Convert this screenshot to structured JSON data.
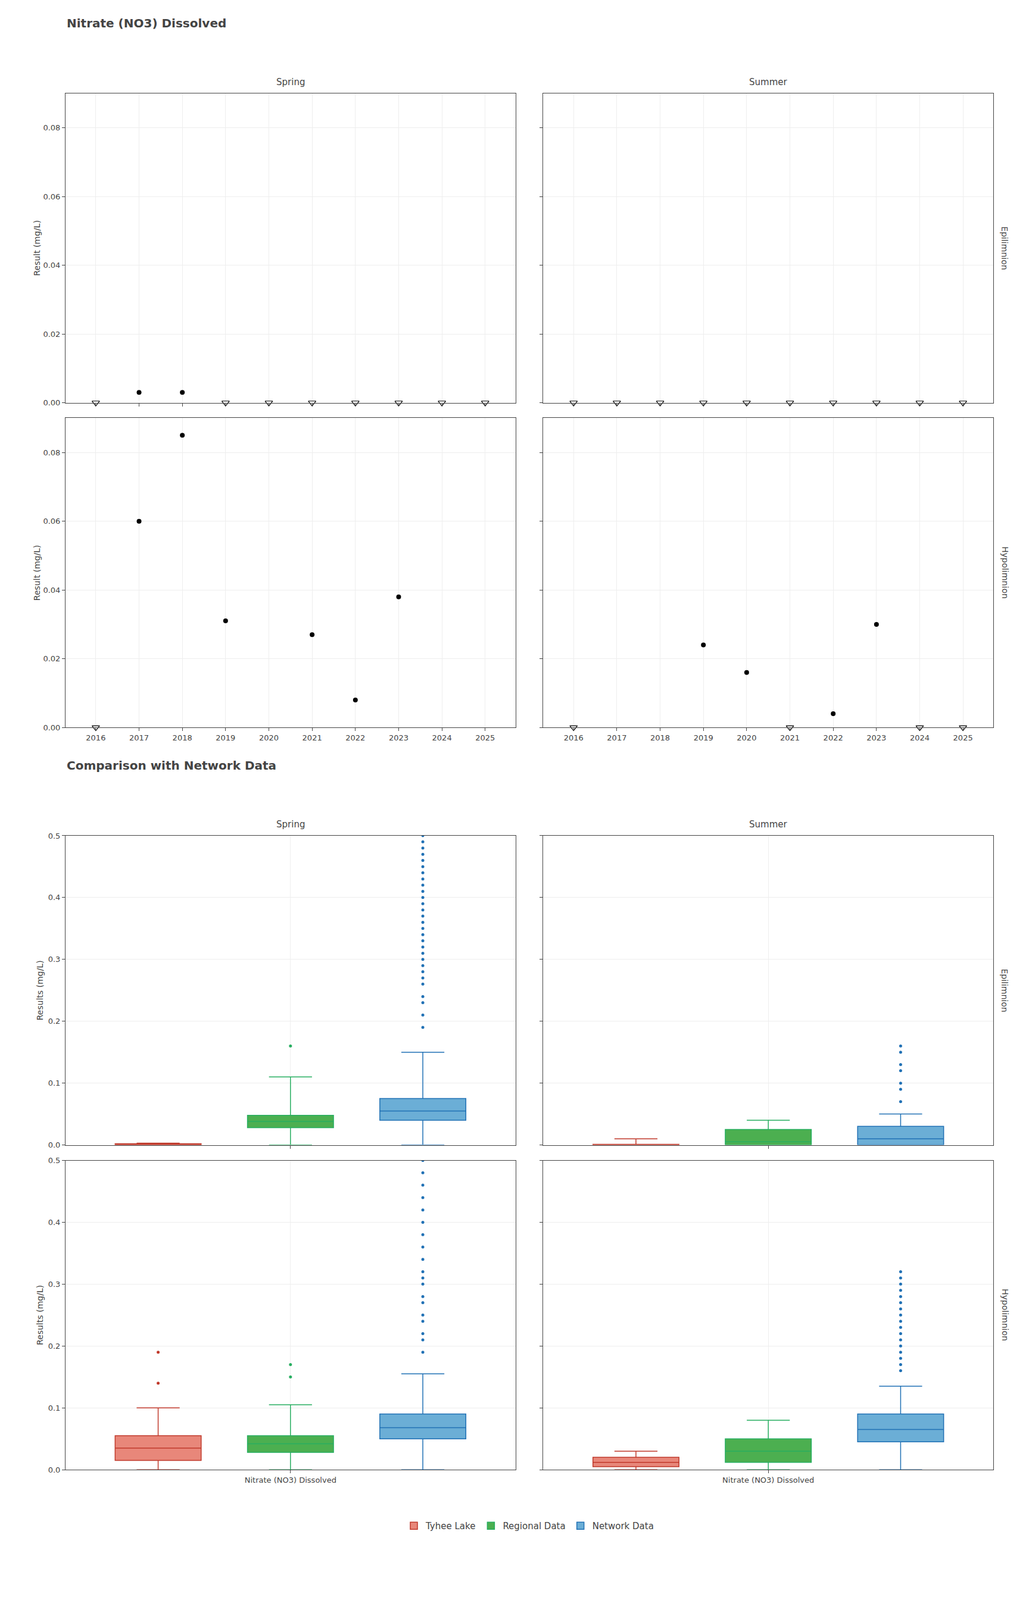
{
  "chart_data": [
    {
      "type": "scatter",
      "title": "Nitrate (NO3) Dissolved",
      "y_label": "Result (mg/L)",
      "columns": [
        "Spring",
        "Summer"
      ],
      "rows": [
        "Epilimnion",
        "Hypolimnion"
      ],
      "xlim": [
        2015.3,
        2025.7
      ],
      "xticks": [
        2016,
        2017,
        2018,
        2019,
        2020,
        2021,
        2022,
        2023,
        2024,
        2025
      ],
      "ylim": [
        0.0,
        0.09
      ],
      "yticks": [
        {
          "value": 0.0,
          "label": "0.00"
        },
        {
          "value": 0.02,
          "label": "0.02"
        },
        {
          "value": 0.04,
          "label": "0.04"
        },
        {
          "value": 0.06,
          "label": "0.06"
        },
        {
          "value": 0.08,
          "label": "0.08"
        }
      ],
      "grid": true,
      "panels": [
        {
          "column": "Spring",
          "row": "Epilimnion",
          "series": [
            {
              "marker": "circle",
              "color": "#000000",
              "x": [
                2017,
                2018
              ],
              "values": [
                0.003,
                0.003
              ]
            },
            {
              "marker": "triangle-down-open",
              "color": "#000000",
              "x": [
                2016,
                2019,
                2020,
                2021,
                2022,
                2023,
                2024,
                2025
              ],
              "values": [
                0,
                0,
                0,
                0,
                0,
                0,
                0,
                0
              ]
            }
          ]
        },
        {
          "column": "Summer",
          "row": "Epilimnion",
          "series": [
            {
              "marker": "circle",
              "color": "#000000",
              "x": [],
              "values": []
            },
            {
              "marker": "triangle-down-open",
              "color": "#000000",
              "x": [
                2016,
                2017,
                2018,
                2019,
                2020,
                2021,
                2022,
                2023,
                2024,
                2025
              ],
              "values": [
                0,
                0,
                0,
                0,
                0,
                0,
                0,
                0,
                0,
                0
              ]
            }
          ]
        },
        {
          "column": "Spring",
          "row": "Hypolimnion",
          "series": [
            {
              "marker": "circle",
              "color": "#000000",
              "x": [
                2017,
                2018,
                2019,
                2021,
                2022,
                2023
              ],
              "values": [
                0.06,
                0.085,
                0.031,
                0.027,
                0.008,
                0.038
              ]
            },
            {
              "marker": "triangle-down-open",
              "color": "#000000",
              "x": [
                2016
              ],
              "values": [
                0
              ]
            }
          ]
        },
        {
          "column": "Summer",
          "row": "Hypolimnion",
          "series": [
            {
              "marker": "circle",
              "color": "#000000",
              "x": [
                2019,
                2020,
                2022,
                2023
              ],
              "values": [
                0.024,
                0.016,
                0.004,
                0.03
              ]
            },
            {
              "marker": "triangle-down-open",
              "color": "#000000",
              "x": [
                2016,
                2021,
                2024,
                2025
              ],
              "values": [
                0,
                0,
                0,
                0
              ]
            }
          ]
        }
      ]
    },
    {
      "type": "box",
      "title": "Comparison with Network Data",
      "y_label": "Results (mg/L)",
      "x_label": "Nitrate (NO3) Dissolved",
      "columns": [
        "Spring",
        "Summer"
      ],
      "rows": [
        "Epilimnion",
        "Hypolimnion"
      ],
      "ylim": [
        0.0,
        0.5
      ],
      "yticks": [
        {
          "value": 0.0,
          "label": "0.0"
        },
        0.1,
        0.2,
        0.3,
        0.4,
        0.5
      ],
      "grid": true,
      "legend": "bottom",
      "series": [
        {
          "name": "Tyhee Lake",
          "color": "#e8877a",
          "edge_color": "#c0392b"
        },
        {
          "name": "Regional Data",
          "color": "#4caf50",
          "edge_color": "#27ae60"
        },
        {
          "name": "Network Data",
          "color": "#6baed6",
          "edge_color": "#2171b5"
        }
      ],
      "panels": [
        {
          "column": "Spring",
          "row": "Epilimnion",
          "boxes": [
            {
              "name": "Tyhee Lake",
              "q1": 0.0,
              "median": 0.0,
              "q3": 0.002,
              "whislo": 0.0,
              "whishi": 0.003,
              "fliers": []
            },
            {
              "name": "Regional Data",
              "q1": 0.028,
              "median": 0.038,
              "q3": 0.048,
              "whislo": 0.0,
              "whishi": 0.11,
              "fliers": [
                0.16
              ]
            },
            {
              "name": "Network Data",
              "q1": 0.04,
              "median": 0.055,
              "q3": 0.075,
              "whislo": 0.0,
              "whishi": 0.15,
              "fliers": [
                0.19,
                0.21,
                0.23,
                0.24,
                0.26,
                0.27,
                0.28,
                0.29,
                0.3,
                0.31,
                0.32,
                0.33,
                0.34,
                0.35,
                0.36,
                0.37,
                0.38,
                0.39,
                0.4,
                0.41,
                0.42,
                0.43,
                0.44,
                0.45,
                0.46,
                0.47,
                0.48,
                0.49,
                0.5
              ]
            }
          ]
        },
        {
          "column": "Summer",
          "row": "Epilimnion",
          "boxes": [
            {
              "name": "Tyhee Lake",
              "q1": 0.0,
              "median": 0.0,
              "q3": 0.001,
              "whislo": 0.0,
              "whishi": 0.01,
              "fliers": []
            },
            {
              "name": "Regional Data",
              "q1": 0.0,
              "median": 0.005,
              "q3": 0.025,
              "whislo": 0.0,
              "whishi": 0.04,
              "fliers": []
            },
            {
              "name": "Network Data",
              "q1": 0.0,
              "median": 0.01,
              "q3": 0.03,
              "whislo": 0.0,
              "whishi": 0.05,
              "fliers": [
                0.07,
                0.09,
                0.1,
                0.12,
                0.13,
                0.15,
                0.16
              ]
            }
          ]
        },
        {
          "column": "Spring",
          "row": "Hypolimnion",
          "boxes": [
            {
              "name": "Tyhee Lake",
              "q1": 0.015,
              "median": 0.035,
              "q3": 0.055,
              "whislo": 0.0,
              "whishi": 0.1,
              "fliers": [
                0.14,
                0.19
              ]
            },
            {
              "name": "Regional Data",
              "q1": 0.028,
              "median": 0.042,
              "q3": 0.055,
              "whislo": 0.0,
              "whishi": 0.105,
              "fliers": [
                0.15,
                0.17
              ]
            },
            {
              "name": "Network Data",
              "q1": 0.05,
              "median": 0.068,
              "q3": 0.09,
              "whislo": 0.0,
              "whishi": 0.155,
              "fliers": [
                0.19,
                0.21,
                0.22,
                0.24,
                0.25,
                0.27,
                0.28,
                0.3,
                0.31,
                0.32,
                0.34,
                0.36,
                0.38,
                0.4,
                0.42,
                0.44,
                0.46,
                0.48,
                0.5
              ]
            }
          ]
        },
        {
          "column": "Summer",
          "row": "Hypolimnion",
          "boxes": [
            {
              "name": "Tyhee Lake",
              "q1": 0.005,
              "median": 0.012,
              "q3": 0.02,
              "whislo": 0.0,
              "whishi": 0.03,
              "fliers": []
            },
            {
              "name": "Regional Data",
              "q1": 0.012,
              "median": 0.03,
              "q3": 0.05,
              "whislo": 0.0,
              "whishi": 0.08,
              "fliers": []
            },
            {
              "name": "Network Data",
              "q1": 0.045,
              "median": 0.065,
              "q3": 0.09,
              "whislo": 0.0,
              "whishi": 0.135,
              "fliers": [
                0.16,
                0.17,
                0.18,
                0.19,
                0.2,
                0.21,
                0.22,
                0.23,
                0.24,
                0.25,
                0.26,
                0.27,
                0.28,
                0.29,
                0.3,
                0.31,
                0.32
              ]
            }
          ]
        }
      ]
    }
  ]
}
